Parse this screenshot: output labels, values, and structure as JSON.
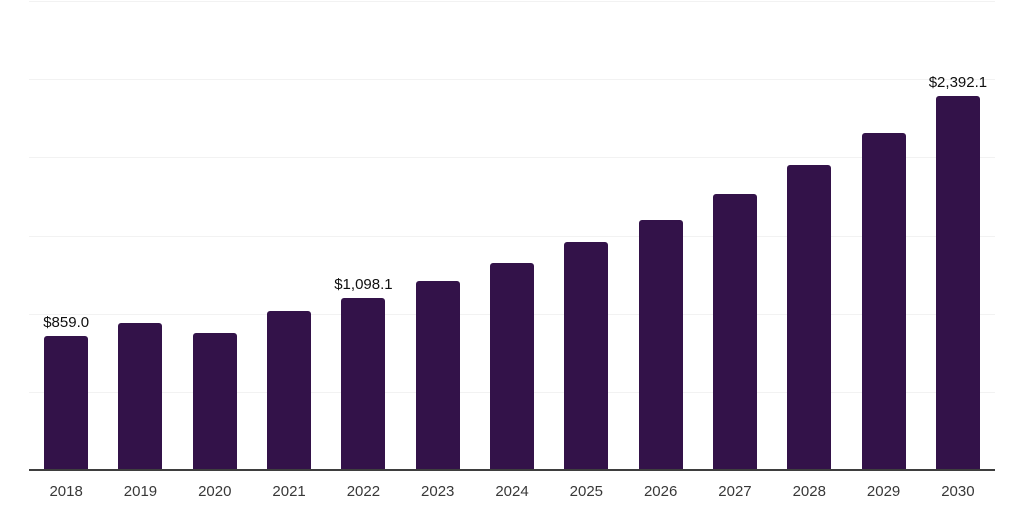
{
  "chart_data": {
    "type": "bar",
    "title": "",
    "xlabel": "",
    "ylabel": "",
    "categories": [
      "2018",
      "2019",
      "2020",
      "2021",
      "2022",
      "2023",
      "2024",
      "2025",
      "2026",
      "2027",
      "2028",
      "2029",
      "2030"
    ],
    "values": [
      859.0,
      943.0,
      877.0,
      1015.0,
      1098.1,
      1210.0,
      1324.0,
      1461.0,
      1601.0,
      1765.0,
      1950.0,
      2158.0,
      2392.1
    ],
    "value_labels": [
      "$859.0",
      null,
      null,
      null,
      "$1,098.1",
      null,
      null,
      null,
      null,
      null,
      null,
      null,
      "$2,392.1"
    ],
    "ylim": [
      0,
      3000
    ],
    "grid_step": 500,
    "grid": true,
    "legend": false,
    "y_tick_labels_visible": false,
    "colors": {
      "bar": "#331249",
      "gridline": "#f2f2f2",
      "axis_line": "#3e3e3e",
      "tick_label": "#383838",
      "value_label": "#0f0f0f",
      "background": "#ffffff"
    }
  }
}
